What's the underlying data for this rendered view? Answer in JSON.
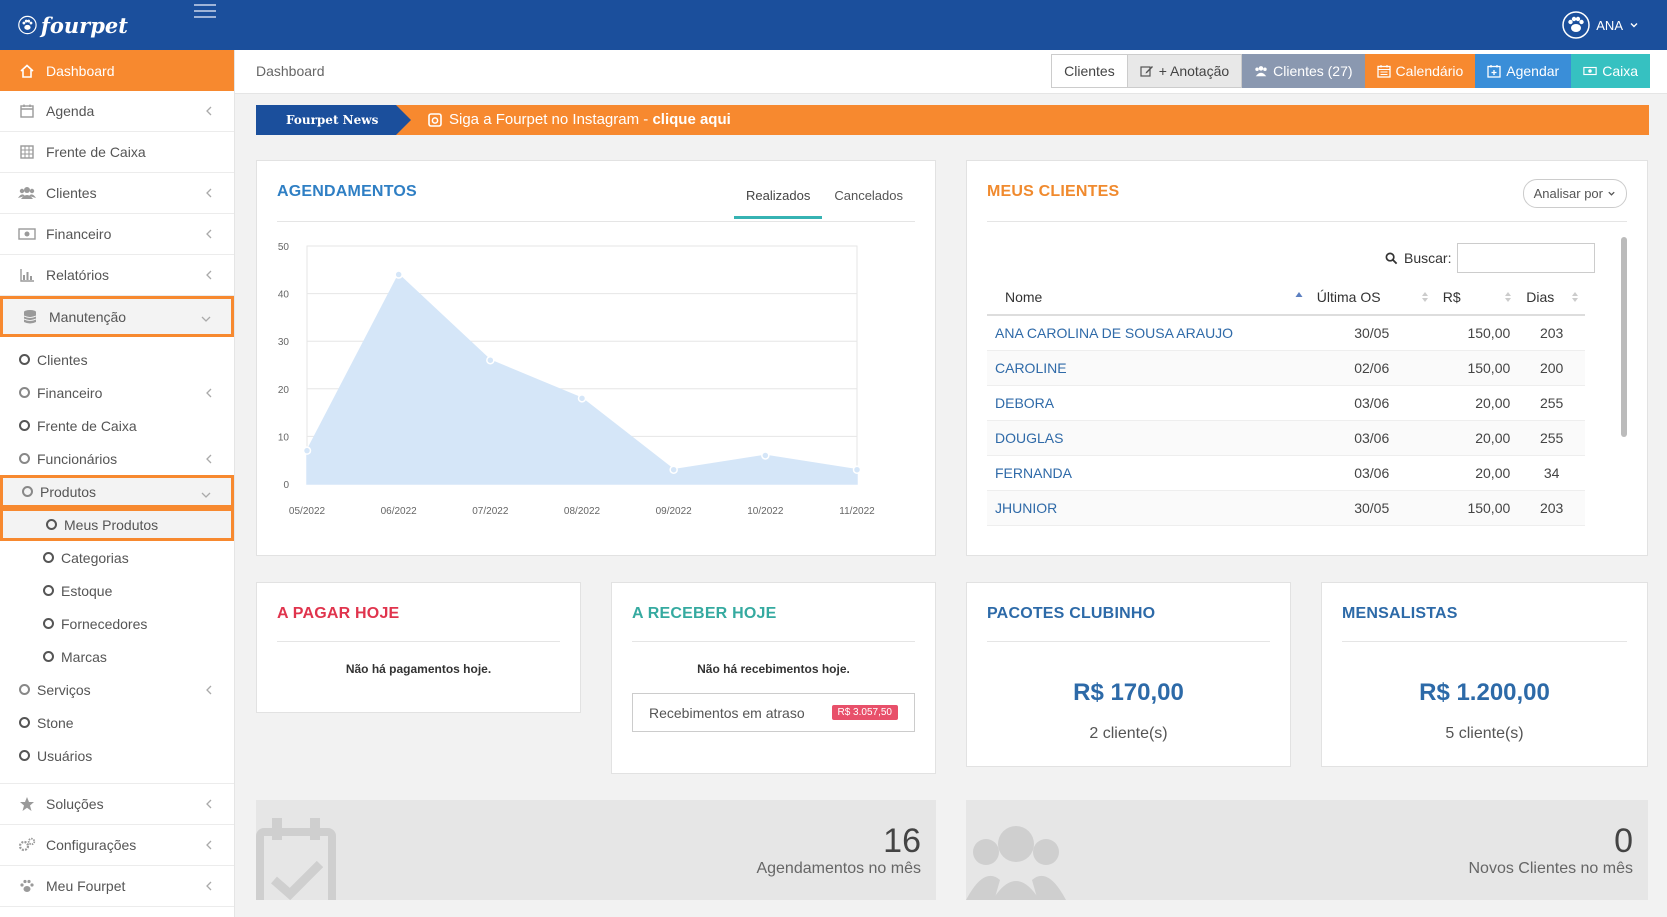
{
  "brand": {
    "name": "fourpet"
  },
  "user": {
    "name": "ANA"
  },
  "sidebar": {
    "items": [
      {
        "label": "Dashboard",
        "icon": "home-icon"
      },
      {
        "label": "Agenda",
        "icon": "calendar-icon"
      },
      {
        "label": "Frente de Caixa",
        "icon": "grid-icon"
      },
      {
        "label": "Clientes",
        "icon": "users-icon"
      },
      {
        "label": "Financeiro",
        "icon": "money-icon"
      },
      {
        "label": "Relatórios",
        "icon": "bar-chart-icon"
      },
      {
        "label": "Manutenção",
        "icon": "database-icon"
      }
    ],
    "manutencao": [
      "Clientes",
      "Financeiro",
      "Frente de Caixa",
      "Funcionários",
      "Produtos"
    ],
    "produtos": [
      "Meus Produtos",
      "Categorias",
      "Estoque",
      "Fornecedores",
      "Marcas"
    ],
    "manutencao_after": [
      "Serviços",
      "Stone",
      "Usuários"
    ],
    "bottom": [
      {
        "label": "Soluções",
        "icon": "star-icon"
      },
      {
        "label": "Configurações",
        "icon": "cogs-icon"
      },
      {
        "label": "Meu Fourpet",
        "icon": "paw-icon"
      }
    ]
  },
  "header": {
    "breadcrumb": "Dashboard",
    "actions": [
      "Clientes",
      "+ Anotação",
      "Clientes (27)",
      "Calendário",
      "Agendar",
      "Caixa"
    ]
  },
  "news": {
    "tag": "Fourpet News",
    "text": "Siga a Fourpet no Instagram - ",
    "link": "clique aqui"
  },
  "agendamentos": {
    "title": "AGENDAMENTOS",
    "tabs": [
      "Realizados",
      "Cancelados"
    ]
  },
  "chart_data": {
    "type": "area",
    "x": [
      "05/2022",
      "06/2022",
      "07/2022",
      "08/2022",
      "09/2022",
      "10/2022",
      "11/2022"
    ],
    "values": [
      7,
      44,
      26,
      18,
      3,
      6,
      3
    ],
    "ylim": [
      0,
      50
    ],
    "yticks": [
      0,
      10,
      20,
      30,
      40,
      50
    ],
    "grid": true,
    "colors": {
      "fill": "#d5e6f8",
      "stroke": "#d5e6f8",
      "point": "#d5e6f8"
    }
  },
  "clientes": {
    "title": "MEUS CLIENTES",
    "analisar": "Analisar por",
    "search_label": "Buscar:",
    "columns": [
      "Nome",
      "Última OS",
      "R$",
      "Dias"
    ],
    "rows": [
      [
        "ANA CAROLINA DE SOUSA ARAUJO",
        "30/05",
        "150,00",
        "203"
      ],
      [
        "CAROLINE",
        "02/06",
        "150,00",
        "200"
      ],
      [
        "DEBORA",
        "03/06",
        "20,00",
        "255"
      ],
      [
        "DOUGLAS",
        "03/06",
        "20,00",
        "255"
      ],
      [
        "FERNANDA",
        "03/06",
        "20,00",
        "34"
      ],
      [
        "JHUNIOR",
        "30/05",
        "150,00",
        "203"
      ]
    ]
  },
  "pagar": {
    "title": "A PAGAR HOJE",
    "empty": "Não há pagamentos hoje."
  },
  "receber": {
    "title": "A RECEBER HOJE",
    "empty": "Não há recebimentos hoje.",
    "late_label": "Recebimentos em atraso",
    "late_value": "R$ 3.057,50"
  },
  "pacotes": {
    "title": "PACOTES CLUBINHO",
    "value": "R$ 170,00",
    "count": "2 cliente(s)"
  },
  "mensalistas": {
    "title": "MENSALISTAS",
    "value": "R$ 1.200,00",
    "count": "5 cliente(s)"
  },
  "stats": [
    {
      "value": "16",
      "label": "Agendamentos no mês"
    },
    {
      "value": "0",
      "label": "Novos Clientes no mês"
    }
  ]
}
